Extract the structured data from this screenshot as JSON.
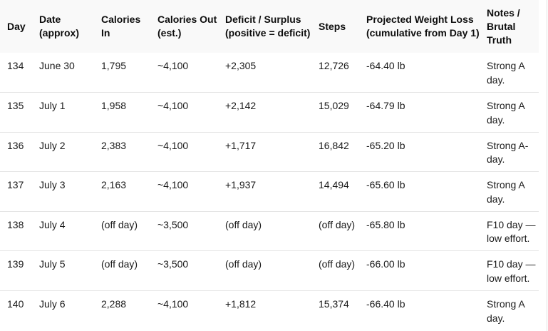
{
  "table": {
    "headers": [
      "Day",
      "Date (approx)",
      "Calories In",
      "Calories Out (est.)",
      "Deficit / Surplus (positive = deficit)",
      "Steps",
      "Projected Weight Loss (cumulative from Day 1)",
      "Notes / Brutal Truth"
    ],
    "rows": [
      [
        "134",
        "June 30",
        "1,795",
        "~4,100",
        "+2,305",
        "12,726",
        "-64.40 lb",
        "Strong A day."
      ],
      [
        "135",
        "July 1",
        "1,958",
        "~4,100",
        "+2,142",
        "15,029",
        "-64.79 lb",
        "Strong A day."
      ],
      [
        "136",
        "July 2",
        "2,383",
        "~4,100",
        "+1,717",
        "16,842",
        "-65.20 lb",
        "Strong A- day."
      ],
      [
        "137",
        "July 3",
        "2,163",
        "~4,100",
        "+1,937",
        "14,494",
        "-65.60 lb",
        "Strong A day."
      ],
      [
        "138",
        "July 4",
        "(off day)",
        "~3,500",
        "(off day)",
        "(off day)",
        "-65.80 lb",
        "F10 day — low effort."
      ],
      [
        "139",
        "July 5",
        "(off day)",
        "~3,500",
        "(off day)",
        "(off day)",
        "-66.00 lb",
        "F10 day — low effort."
      ],
      [
        "140",
        "July 6",
        "2,288",
        "~4,100",
        "+1,812",
        "15,374",
        "-66.40 lb",
        "Strong A day."
      ]
    ]
  }
}
